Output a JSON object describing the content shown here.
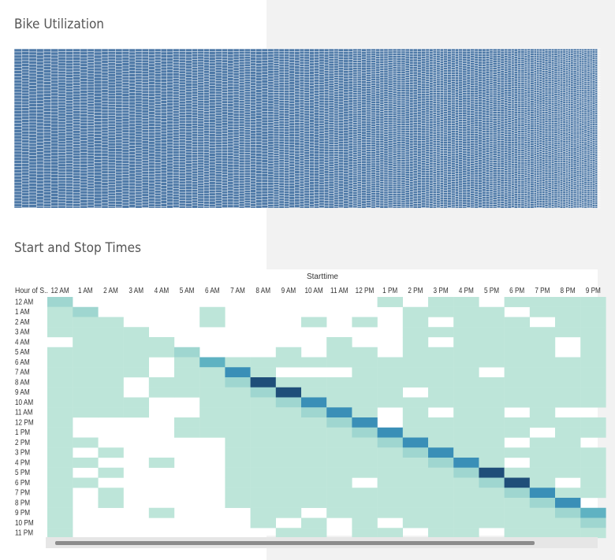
{
  "dashboard": {
    "utilization_title": "Bike Utilization",
    "times_title": "Start and Stop Times",
    "colors": {
      "bike_cell": "#4e79a7",
      "heat_low": "#bde5d9",
      "heat_mid": "#5fb2c2",
      "heat_high": "#1f4e79",
      "panel_bg": "#f2f2f2"
    }
  },
  "chart_data": [
    {
      "type": "treemap",
      "title": "Bike Utilization",
      "color": "#4e79a7"
    },
    {
      "type": "heatmap",
      "title": "Start and Stop Times",
      "column_header": "Starttime",
      "row_header": "Hour of S..",
      "columns": [
        "12 AM",
        "1 AM",
        "2 AM",
        "3 AM",
        "4 AM",
        "5 AM",
        "6 AM",
        "7 AM",
        "8 AM",
        "9 AM",
        "10 AM",
        "11 AM",
        "12 PM",
        "1 PM",
        "2 PM",
        "3 PM",
        "4 PM",
        "5 PM",
        "6 PM",
        "7 PM",
        "8 PM",
        "9 PM"
      ],
      "rows": [
        "12 AM",
        "1 AM",
        "2 AM",
        "3 AM",
        "4 AM",
        "5 AM",
        "6 AM",
        "7 AM",
        "8 AM",
        "9 AM",
        "10 AM",
        "11 AM",
        "12 PM",
        "1 PM",
        "2 PM",
        "3 PM",
        "4 PM",
        "5 PM",
        "6 PM",
        "7 PM",
        "8 PM",
        "9 PM",
        "10 PM",
        "11 PM"
      ],
      "values": [
        [
          2,
          0,
          0,
          0,
          0,
          0,
          0,
          0,
          0,
          0,
          0,
          0,
          0,
          1,
          0,
          1,
          1,
          0,
          1,
          1,
          1,
          1
        ],
        [
          1,
          2,
          0,
          0,
          0,
          0,
          1,
          0,
          0,
          0,
          0,
          0,
          0,
          0,
          1,
          1,
          1,
          1,
          0,
          1,
          1,
          1
        ],
        [
          1,
          1,
          1,
          0,
          0,
          0,
          1,
          0,
          0,
          0,
          1,
          0,
          1,
          0,
          1,
          0,
          1,
          1,
          1,
          0,
          1,
          1
        ],
        [
          1,
          1,
          1,
          1,
          0,
          0,
          0,
          0,
          0,
          0,
          0,
          0,
          0,
          0,
          1,
          1,
          1,
          1,
          1,
          1,
          1,
          1
        ],
        [
          0,
          1,
          1,
          1,
          1,
          0,
          0,
          0,
          0,
          0,
          0,
          1,
          0,
          0,
          1,
          0,
          1,
          1,
          1,
          1,
          0,
          1
        ],
        [
          1,
          1,
          1,
          1,
          1,
          2,
          0,
          0,
          0,
          1,
          0,
          1,
          1,
          0,
          1,
          1,
          1,
          1,
          1,
          1,
          0,
          1
        ],
        [
          1,
          1,
          1,
          1,
          0,
          1,
          3,
          1,
          1,
          1,
          1,
          1,
          1,
          1,
          1,
          1,
          1,
          1,
          1,
          1,
          1,
          1
        ],
        [
          1,
          1,
          1,
          1,
          0,
          1,
          1,
          4,
          1,
          0,
          0,
          0,
          1,
          1,
          1,
          1,
          1,
          0,
          1,
          1,
          1,
          1
        ],
        [
          1,
          1,
          1,
          0,
          1,
          1,
          1,
          2,
          5,
          1,
          1,
          1,
          1,
          1,
          1,
          1,
          1,
          1,
          1,
          1,
          1,
          1
        ],
        [
          1,
          1,
          1,
          0,
          1,
          1,
          1,
          1,
          2,
          5,
          1,
          1,
          1,
          1,
          0,
          1,
          1,
          1,
          1,
          1,
          1,
          1
        ],
        [
          1,
          1,
          1,
          1,
          0,
          0,
          1,
          1,
          1,
          2,
          4,
          1,
          1,
          1,
          1,
          1,
          1,
          1,
          1,
          1,
          1,
          1
        ],
        [
          1,
          1,
          1,
          1,
          0,
          0,
          1,
          1,
          1,
          1,
          2,
          4,
          1,
          0,
          1,
          0,
          1,
          1,
          0,
          1,
          0,
          0
        ],
        [
          1,
          0,
          0,
          0,
          0,
          1,
          1,
          1,
          1,
          1,
          1,
          2,
          4,
          0,
          1,
          1,
          1,
          1,
          1,
          1,
          1,
          1
        ],
        [
          1,
          0,
          0,
          0,
          0,
          1,
          1,
          1,
          1,
          1,
          1,
          1,
          2,
          4,
          1,
          1,
          1,
          1,
          1,
          0,
          1,
          1
        ],
        [
          1,
          1,
          0,
          0,
          0,
          0,
          0,
          1,
          1,
          1,
          1,
          1,
          1,
          2,
          4,
          1,
          1,
          1,
          0,
          1,
          1,
          0
        ],
        [
          1,
          0,
          1,
          0,
          0,
          0,
          0,
          1,
          1,
          1,
          1,
          1,
          1,
          1,
          2,
          4,
          1,
          1,
          1,
          1,
          1,
          1
        ],
        [
          1,
          1,
          0,
          0,
          1,
          0,
          0,
          1,
          1,
          1,
          1,
          1,
          1,
          1,
          1,
          2,
          4,
          1,
          0,
          1,
          1,
          1
        ],
        [
          1,
          0,
          1,
          0,
          0,
          0,
          0,
          1,
          1,
          1,
          1,
          1,
          1,
          1,
          1,
          1,
          2,
          5,
          1,
          1,
          1,
          1
        ],
        [
          1,
          1,
          0,
          0,
          0,
          0,
          0,
          1,
          1,
          1,
          1,
          1,
          0,
          1,
          1,
          1,
          1,
          2,
          5,
          1,
          0,
          1
        ],
        [
          1,
          0,
          1,
          0,
          0,
          0,
          0,
          1,
          1,
          1,
          1,
          1,
          1,
          1,
          1,
          1,
          1,
          1,
          2,
          4,
          1,
          1
        ],
        [
          1,
          0,
          1,
          0,
          0,
          0,
          0,
          1,
          1,
          1,
          1,
          1,
          1,
          1,
          1,
          1,
          1,
          1,
          1,
          2,
          4,
          0
        ],
        [
          1,
          0,
          0,
          0,
          1,
          0,
          0,
          0,
          1,
          1,
          0,
          1,
          1,
          1,
          1,
          1,
          1,
          1,
          1,
          1,
          2,
          3
        ],
        [
          1,
          0,
          0,
          0,
          0,
          0,
          0,
          0,
          1,
          0,
          1,
          0,
          1,
          0,
          1,
          1,
          1,
          1,
          1,
          1,
          1,
          2
        ],
        [
          1,
          0,
          0,
          0,
          0,
          0,
          0,
          0,
          0,
          1,
          1,
          0,
          1,
          1,
          0,
          1,
          1,
          0,
          1,
          1,
          1,
          1
        ]
      ]
    }
  ]
}
